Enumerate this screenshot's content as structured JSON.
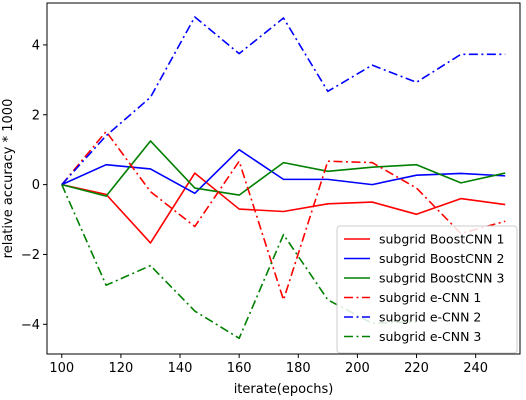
{
  "chart_data": {
    "type": "line",
    "title": "",
    "xlabel": "iterate(epochs)",
    "ylabel": "relative accuracy * 1000",
    "xlim": [
      95,
      255
    ],
    "ylim": [
      -4.85,
      5.2
    ],
    "xticks": [
      100,
      120,
      140,
      160,
      180,
      200,
      220,
      240
    ],
    "xtick_labels": [
      "100",
      "120",
      "140",
      "160",
      "180",
      "200",
      "220",
      "240"
    ],
    "yticks": [
      -4,
      -2,
      0,
      2,
      4
    ],
    "ytick_labels": [
      "−4",
      "−2",
      "0",
      "2",
      "4"
    ],
    "grid": false,
    "legend_position": "lower-right",
    "series": [
      {
        "name": "subgrid BoostCNN 1",
        "color": "#ff0000",
        "style": "solid",
        "x": [
          100,
          115,
          130,
          145,
          160,
          175,
          190,
          205,
          220,
          235,
          250
        ],
        "y": [
          0.0,
          -0.28,
          -1.67,
          0.33,
          -0.7,
          -0.77,
          -0.55,
          -0.5,
          -0.85,
          -0.4,
          -0.57
        ]
      },
      {
        "name": "subgrid BoostCNN 2",
        "color": "#0000ff",
        "style": "solid",
        "x": [
          100,
          115,
          130,
          145,
          160,
          175,
          190,
          205,
          220,
          235,
          250
        ],
        "y": [
          0.0,
          0.57,
          0.45,
          -0.25,
          1.0,
          0.15,
          0.15,
          0.0,
          0.27,
          0.32,
          0.25
        ]
      },
      {
        "name": "subgrid BoostCNN 3",
        "color": "#008000",
        "style": "solid",
        "x": [
          100,
          115,
          130,
          145,
          160,
          175,
          190,
          205,
          220,
          235,
          250
        ],
        "y": [
          0.0,
          -0.33,
          1.25,
          -0.1,
          -0.3,
          0.63,
          0.38,
          0.5,
          0.57,
          0.05,
          0.33
        ]
      },
      {
        "name": "subgrid e-CNN 1",
        "color": "#ff0000",
        "style": "dashdot",
        "x": [
          100,
          115,
          130,
          145,
          160,
          175,
          190,
          205,
          220,
          235,
          250
        ],
        "y": [
          0.0,
          1.52,
          -0.2,
          -1.2,
          0.67,
          -3.3,
          0.67,
          0.63,
          -0.1,
          -1.4,
          -1.05
        ]
      },
      {
        "name": "subgrid e-CNN 2",
        "color": "#0000ff",
        "style": "dashdot",
        "x": [
          100,
          115,
          130,
          145,
          160,
          175,
          190,
          205,
          220,
          235,
          250
        ],
        "y": [
          0.0,
          1.4,
          2.5,
          4.8,
          3.75,
          4.77,
          2.67,
          3.42,
          2.93,
          3.73,
          3.73
        ]
      },
      {
        "name": "subgrid e-CNN 3",
        "color": "#008000",
        "style": "dashdot",
        "x": [
          100,
          115,
          130,
          145,
          160,
          175,
          190,
          205,
          220
        ],
        "y": [
          0.0,
          -2.88,
          -2.32,
          -3.62,
          -4.4,
          -1.43,
          -3.3,
          -3.97,
          -3.93
        ]
      }
    ]
  }
}
